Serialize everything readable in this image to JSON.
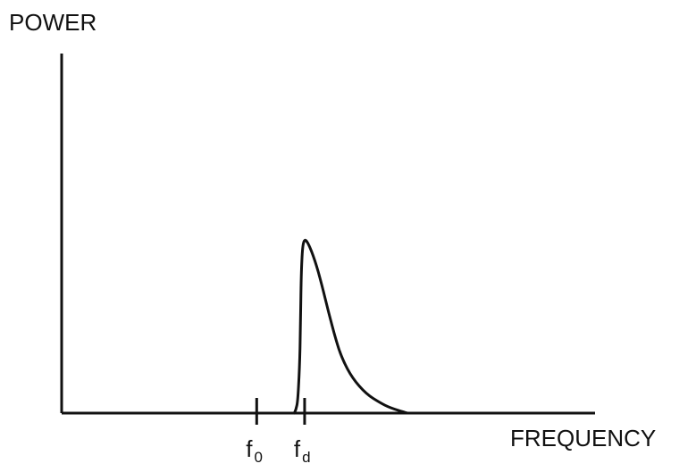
{
  "chart_data": {
    "type": "line",
    "title": "",
    "ylabel": "POWER",
    "xlabel": "FREQUENCY",
    "grid": false,
    "xlim": [
      0,
      10
    ],
    "ylim": [
      0,
      1
    ],
    "x_ticks": [
      {
        "base": "f",
        "sub": "0",
        "x": 5.7
      },
      {
        "base": "f",
        "sub": "d",
        "x": 7.1
      }
    ],
    "series": [
      {
        "x": [
          6.8,
          6.85,
          6.9,
          6.95,
          6.98,
          7.0,
          7.04,
          7.1,
          7.2,
          7.4,
          7.6,
          7.8,
          8.0,
          8.2,
          8.5,
          8.9,
          9.3,
          9.6,
          10.1
        ],
        "values": [
          0.0,
          0.02,
          0.07,
          0.25,
          0.5,
          0.8,
          0.96,
          1.0,
          0.98,
          0.88,
          0.74,
          0.58,
          0.43,
          0.31,
          0.2,
          0.11,
          0.06,
          0.03,
          0.0
        ]
      }
    ]
  }
}
